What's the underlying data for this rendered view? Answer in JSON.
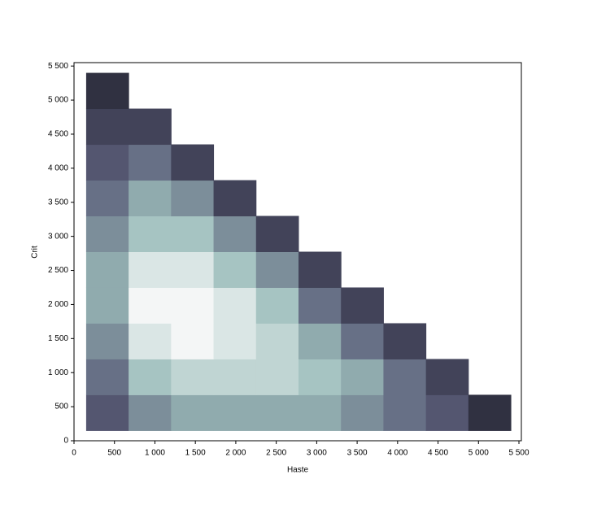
{
  "chart_data": {
    "type": "contour",
    "x_label": "Haste",
    "y_label": "Crit",
    "xlim": [
      0,
      5530
    ],
    "ylim": [
      0,
      5550
    ],
    "xticks": [
      0,
      500,
      {
        "value": 1000,
        "label": "1 000"
      },
      {
        "value": 1500,
        "label": "1 500"
      },
      {
        "value": 2000,
        "label": "2 000"
      },
      {
        "value": 2500,
        "label": "2 500"
      },
      {
        "value": 3000,
        "label": "3 000"
      },
      {
        "value": 3500,
        "label": "3 500"
      },
      {
        "value": 4000,
        "label": "4 000"
      },
      {
        "value": 4500,
        "label": "4 500"
      },
      {
        "value": 5000,
        "label": "5 000"
      },
      {
        "value": 5500,
        "label": "5 500"
      }
    ],
    "yticks": [
      0,
      500,
      {
        "value": 1000,
        "label": "1 000"
      },
      {
        "value": 1500,
        "label": "1 500"
      },
      {
        "value": 2000,
        "label": "2 000"
      },
      {
        "value": 2500,
        "label": "2 500"
      },
      {
        "value": 3000,
        "label": "3 000"
      },
      {
        "value": 3500,
        "label": "3 500"
      },
      {
        "value": 4000,
        "label": "4 000"
      },
      {
        "value": 4500,
        "label": "4 500"
      },
      {
        "value": 5000,
        "label": "5 000"
      },
      {
        "value": 5500,
        "label": "5 500"
      }
    ],
    "x_edges": [
      150,
      675,
      1200,
      1725,
      2250,
      2775,
      3300,
      3825,
      4350,
      4875,
      5400
    ],
    "y_edges": [
      150,
      675,
      1200,
      1725,
      2250,
      2775,
      3300,
      3825,
      4350,
      4875,
      5400
    ],
    "zlim": [
      0,
      10
    ],
    "colormap": [
      "#1e1e2a",
      "#5a5c78",
      "#9dbfbc",
      "#f4f6f6"
    ],
    "z": [
      [
        3,
        5,
        6,
        6,
        6,
        6,
        5,
        4,
        3,
        1
      ],
      [
        4,
        7,
        8,
        8,
        8,
        7,
        6,
        4,
        2
      ],
      [
        5,
        9,
        10,
        9,
        8,
        6,
        4,
        2
      ],
      [
        6,
        10,
        10,
        9,
        7,
        4,
        2
      ],
      [
        6,
        9,
        9,
        7,
        5,
        2
      ],
      [
        5,
        7,
        7,
        5,
        2
      ],
      [
        4,
        6,
        5,
        2
      ],
      [
        3,
        4,
        2
      ],
      [
        2,
        2
      ],
      [
        1
      ]
    ]
  }
}
